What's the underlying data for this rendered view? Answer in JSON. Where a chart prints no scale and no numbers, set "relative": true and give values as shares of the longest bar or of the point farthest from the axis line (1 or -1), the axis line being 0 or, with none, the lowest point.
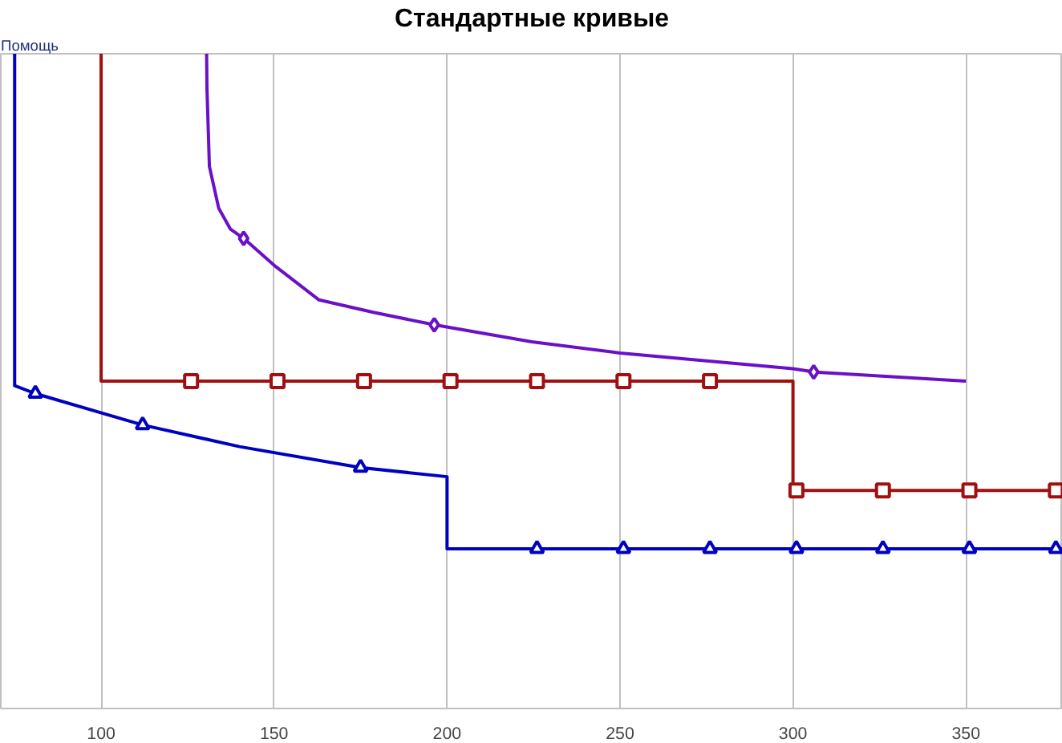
{
  "chart_data": {
    "type": "line",
    "title": "Стандартные кривые",
    "relative": true,
    "xlim": [
      71,
      378
    ],
    "xticks": [
      100,
      150,
      200,
      250,
      300,
      350
    ],
    "grid": "x",
    "line_style": "solid",
    "annotations": [
      "Помощь"
    ],
    "series": [
      {
        "color": "#0000c0",
        "x": [
          75,
          75,
          81,
          112,
          140,
          175,
          200,
          200,
          378
        ],
        "values": [
          1.0,
          0.493,
          0.481,
          0.433,
          0.4,
          0.368,
          0.354,
          0.244,
          0.244
        ]
      },
      {
        "type": "scatter",
        "color": "#0000c0",
        "marker": "triangle",
        "x": [
          81,
          112,
          175,
          226,
          251,
          276,
          301,
          326,
          351,
          376
        ],
        "values": [
          0.481,
          0.433,
          0.368,
          0.244,
          0.244,
          0.244,
          0.244,
          0.244,
          0.244,
          0.244
        ]
      },
      {
        "color": "#a01010",
        "x": [
          100,
          100,
          300,
          300,
          378
        ],
        "values": [
          1.0,
          0.5,
          0.5,
          0.333,
          0.333
        ]
      },
      {
        "type": "scatter",
        "color": "#a01010",
        "marker": "square",
        "x": [
          126,
          151,
          176,
          201,
          226,
          251,
          276,
          301,
          326,
          351,
          376
        ],
        "values": [
          0.5,
          0.5,
          0.5,
          0.5,
          0.5,
          0.5,
          0.5,
          0.333,
          0.333,
          0.333,
          0.333
        ]
      },
      {
        "color": "#6a10c8",
        "x": [
          130.5,
          130.6,
          131.3,
          134,
          137.4,
          141.2,
          150,
          163,
          178.7,
          196.3,
          224.5,
          250,
          300,
          306,
          350
        ],
        "values": [
          1.0,
          0.947,
          0.828,
          0.764,
          0.732,
          0.718,
          0.677,
          0.624,
          0.605,
          0.586,
          0.56,
          0.543,
          0.519,
          0.514,
          0.5
        ]
      },
      {
        "type": "scatter",
        "color": "#6a10c8",
        "marker": "diamond",
        "x": [
          141.2,
          196.3,
          306
        ],
        "values": [
          0.718,
          0.586,
          0.514
        ]
      }
    ]
  }
}
